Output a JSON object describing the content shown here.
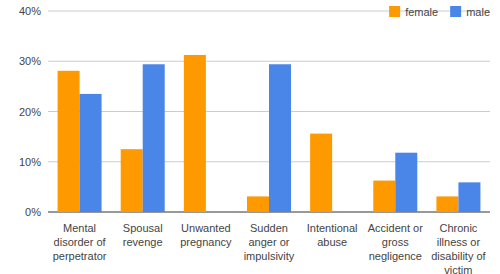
{
  "chart_data": {
    "type": "bar",
    "categories": [
      "Mental disorder of perpetrator",
      "Spousal revenge",
      "Unwanted pregnancy",
      "Sudden anger or impulsivity",
      "Intentional abuse",
      "Accident or gross negligence",
      "Chronic illness or disability of victim"
    ],
    "series": [
      {
        "name": "female",
        "color": "#ff9900",
        "values": [
          28.1,
          12.5,
          31.25,
          3.1,
          15.6,
          6.25,
          3.1
        ]
      },
      {
        "name": "male",
        "color": "#4a86e8",
        "values": [
          23.5,
          29.4,
          0,
          29.4,
          0,
          11.8,
          5.9
        ]
      }
    ],
    "ylim": [
      0,
      40
    ],
    "yticks": [
      {
        "value": 0,
        "label": "0%"
      },
      {
        "value": 10,
        "label": "10%"
      },
      {
        "value": 20,
        "label": "20%"
      },
      {
        "value": 30,
        "label": "30%"
      },
      {
        "value": 40,
        "label": "40%"
      }
    ],
    "grid": true,
    "legend": "top-right"
  }
}
